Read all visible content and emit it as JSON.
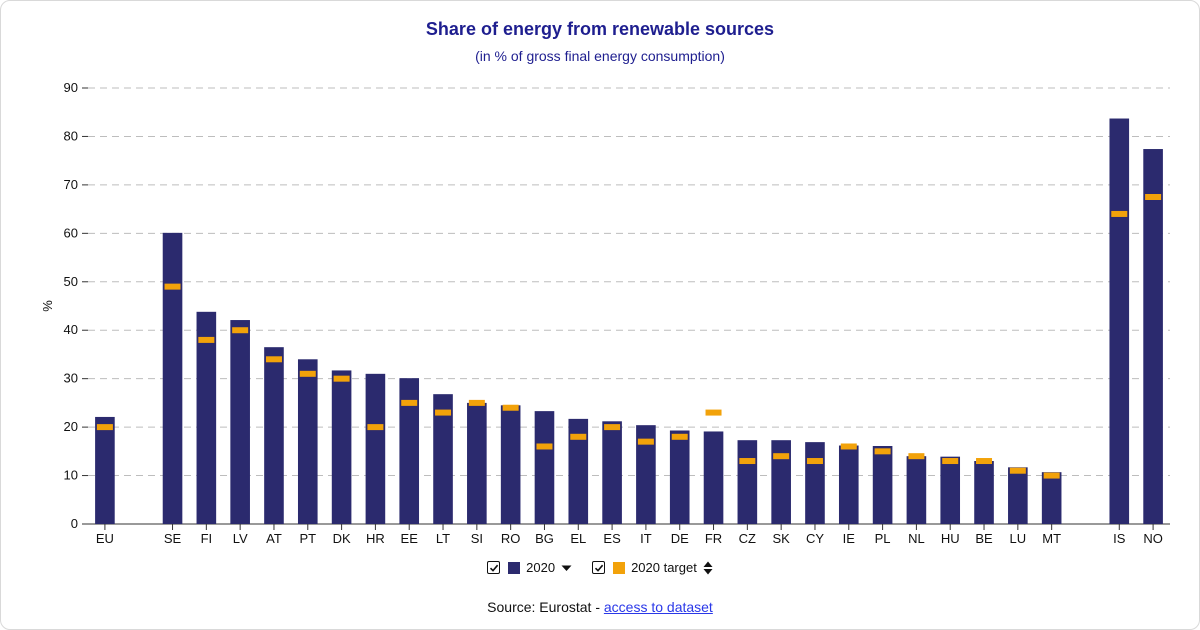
{
  "title": "Share of energy from renewable sources",
  "subtitle": "(in % of gross final energy consumption)",
  "legend": {
    "series_label": "2020",
    "target_label": "2020 target"
  },
  "source": {
    "prefix": "Source: Eurostat - ",
    "link": "access to dataset"
  },
  "colors": {
    "bar": "#2b2a6e",
    "target": "#f2a20a",
    "grid": "#bdbdbd",
    "title": "#1e1e8f",
    "link": "#2a38e8"
  },
  "icons": [
    "checkbox-checked-icon",
    "sort-down-icon",
    "sort-updown-icon"
  ],
  "chart_data": {
    "type": "bar",
    "ylabel": "%",
    "ylim": [
      0,
      90
    ],
    "yticks": [
      0,
      10,
      20,
      30,
      40,
      50,
      60,
      70,
      80,
      90
    ],
    "grid": true,
    "legend_position": "bottom",
    "categories": [
      "EU",
      "SE",
      "FI",
      "LV",
      "AT",
      "PT",
      "DK",
      "HR",
      "EE",
      "LT",
      "SI",
      "RO",
      "BG",
      "EL",
      "ES",
      "IT",
      "DE",
      "FR",
      "CZ",
      "SK",
      "CY",
      "IE",
      "PL",
      "NL",
      "HU",
      "BE",
      "LU",
      "MT",
      "IS",
      "NO"
    ],
    "groups": [
      1,
      27,
      2
    ],
    "series": [
      {
        "name": "2020",
        "values": [
          22.1,
          60.1,
          43.8,
          42.1,
          36.5,
          34.0,
          31.7,
          31.0,
          30.1,
          26.8,
          25.0,
          24.5,
          23.3,
          21.7,
          21.2,
          20.4,
          19.3,
          19.1,
          17.3,
          17.3,
          16.9,
          16.2,
          16.1,
          14.0,
          13.9,
          13.0,
          11.7,
          10.7,
          83.7,
          77.4
        ]
      },
      {
        "name": "2020 target",
        "values": [
          20,
          49,
          38,
          40,
          34,
          31,
          30,
          20,
          25,
          23,
          25,
          24,
          16,
          18,
          20,
          17,
          18,
          23,
          13,
          14,
          13,
          16,
          15,
          14,
          13,
          13,
          11,
          10,
          64,
          67.5
        ]
      }
    ]
  }
}
